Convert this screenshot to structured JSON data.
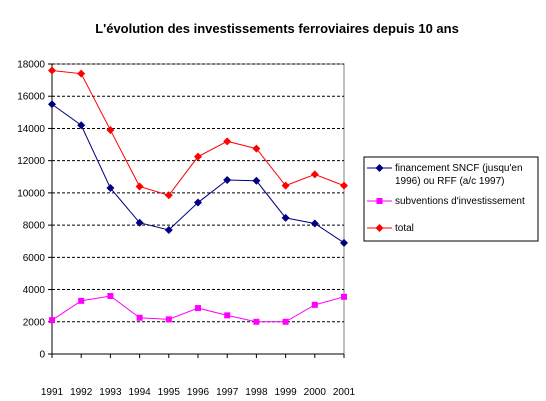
{
  "chart_data": {
    "type": "line",
    "title": "L'évolution des investissements ferroviaires depuis 10 ans",
    "xlabel": "",
    "ylabel": "",
    "x": [
      "1991",
      "1992",
      "1993",
      "1994",
      "1995",
      "1996",
      "1997",
      "1998",
      "1999",
      "2000",
      "2001"
    ],
    "ylim": [
      0,
      18000
    ],
    "yticks": [
      0,
      2000,
      4000,
      6000,
      8000,
      10000,
      12000,
      14000,
      16000,
      18000
    ],
    "grid": "horizontal dashed",
    "legend_position": "right",
    "series": [
      {
        "name": "financement SNCF (jusqu'en 1996) ou RFF (a/c 1997)",
        "legend_lines": [
          "financement SNCF (jusqu'en",
          "1996) ou RFF (a/c 1997)"
        ],
        "color": "#000080",
        "marker": "diamond",
        "values": [
          15500,
          14200,
          10300,
          8150,
          7700,
          9400,
          10800,
          10750,
          8450,
          8100,
          6900
        ]
      },
      {
        "name": "subventions d'investissement",
        "legend_lines": [
          "subventions d'investissement"
        ],
        "color": "#ff00ff",
        "marker": "square",
        "values": [
          2100,
          3300,
          3600,
          2250,
          2150,
          2850,
          2400,
          2000,
          2000,
          3050,
          3550
        ]
      },
      {
        "name": "total",
        "legend_lines": [
          "total"
        ],
        "color": "#ff0000",
        "marker": "diamond",
        "values": [
          17600,
          17400,
          13900,
          10400,
          9850,
          12250,
          13200,
          12750,
          10450,
          11150,
          10450
        ]
      }
    ]
  }
}
